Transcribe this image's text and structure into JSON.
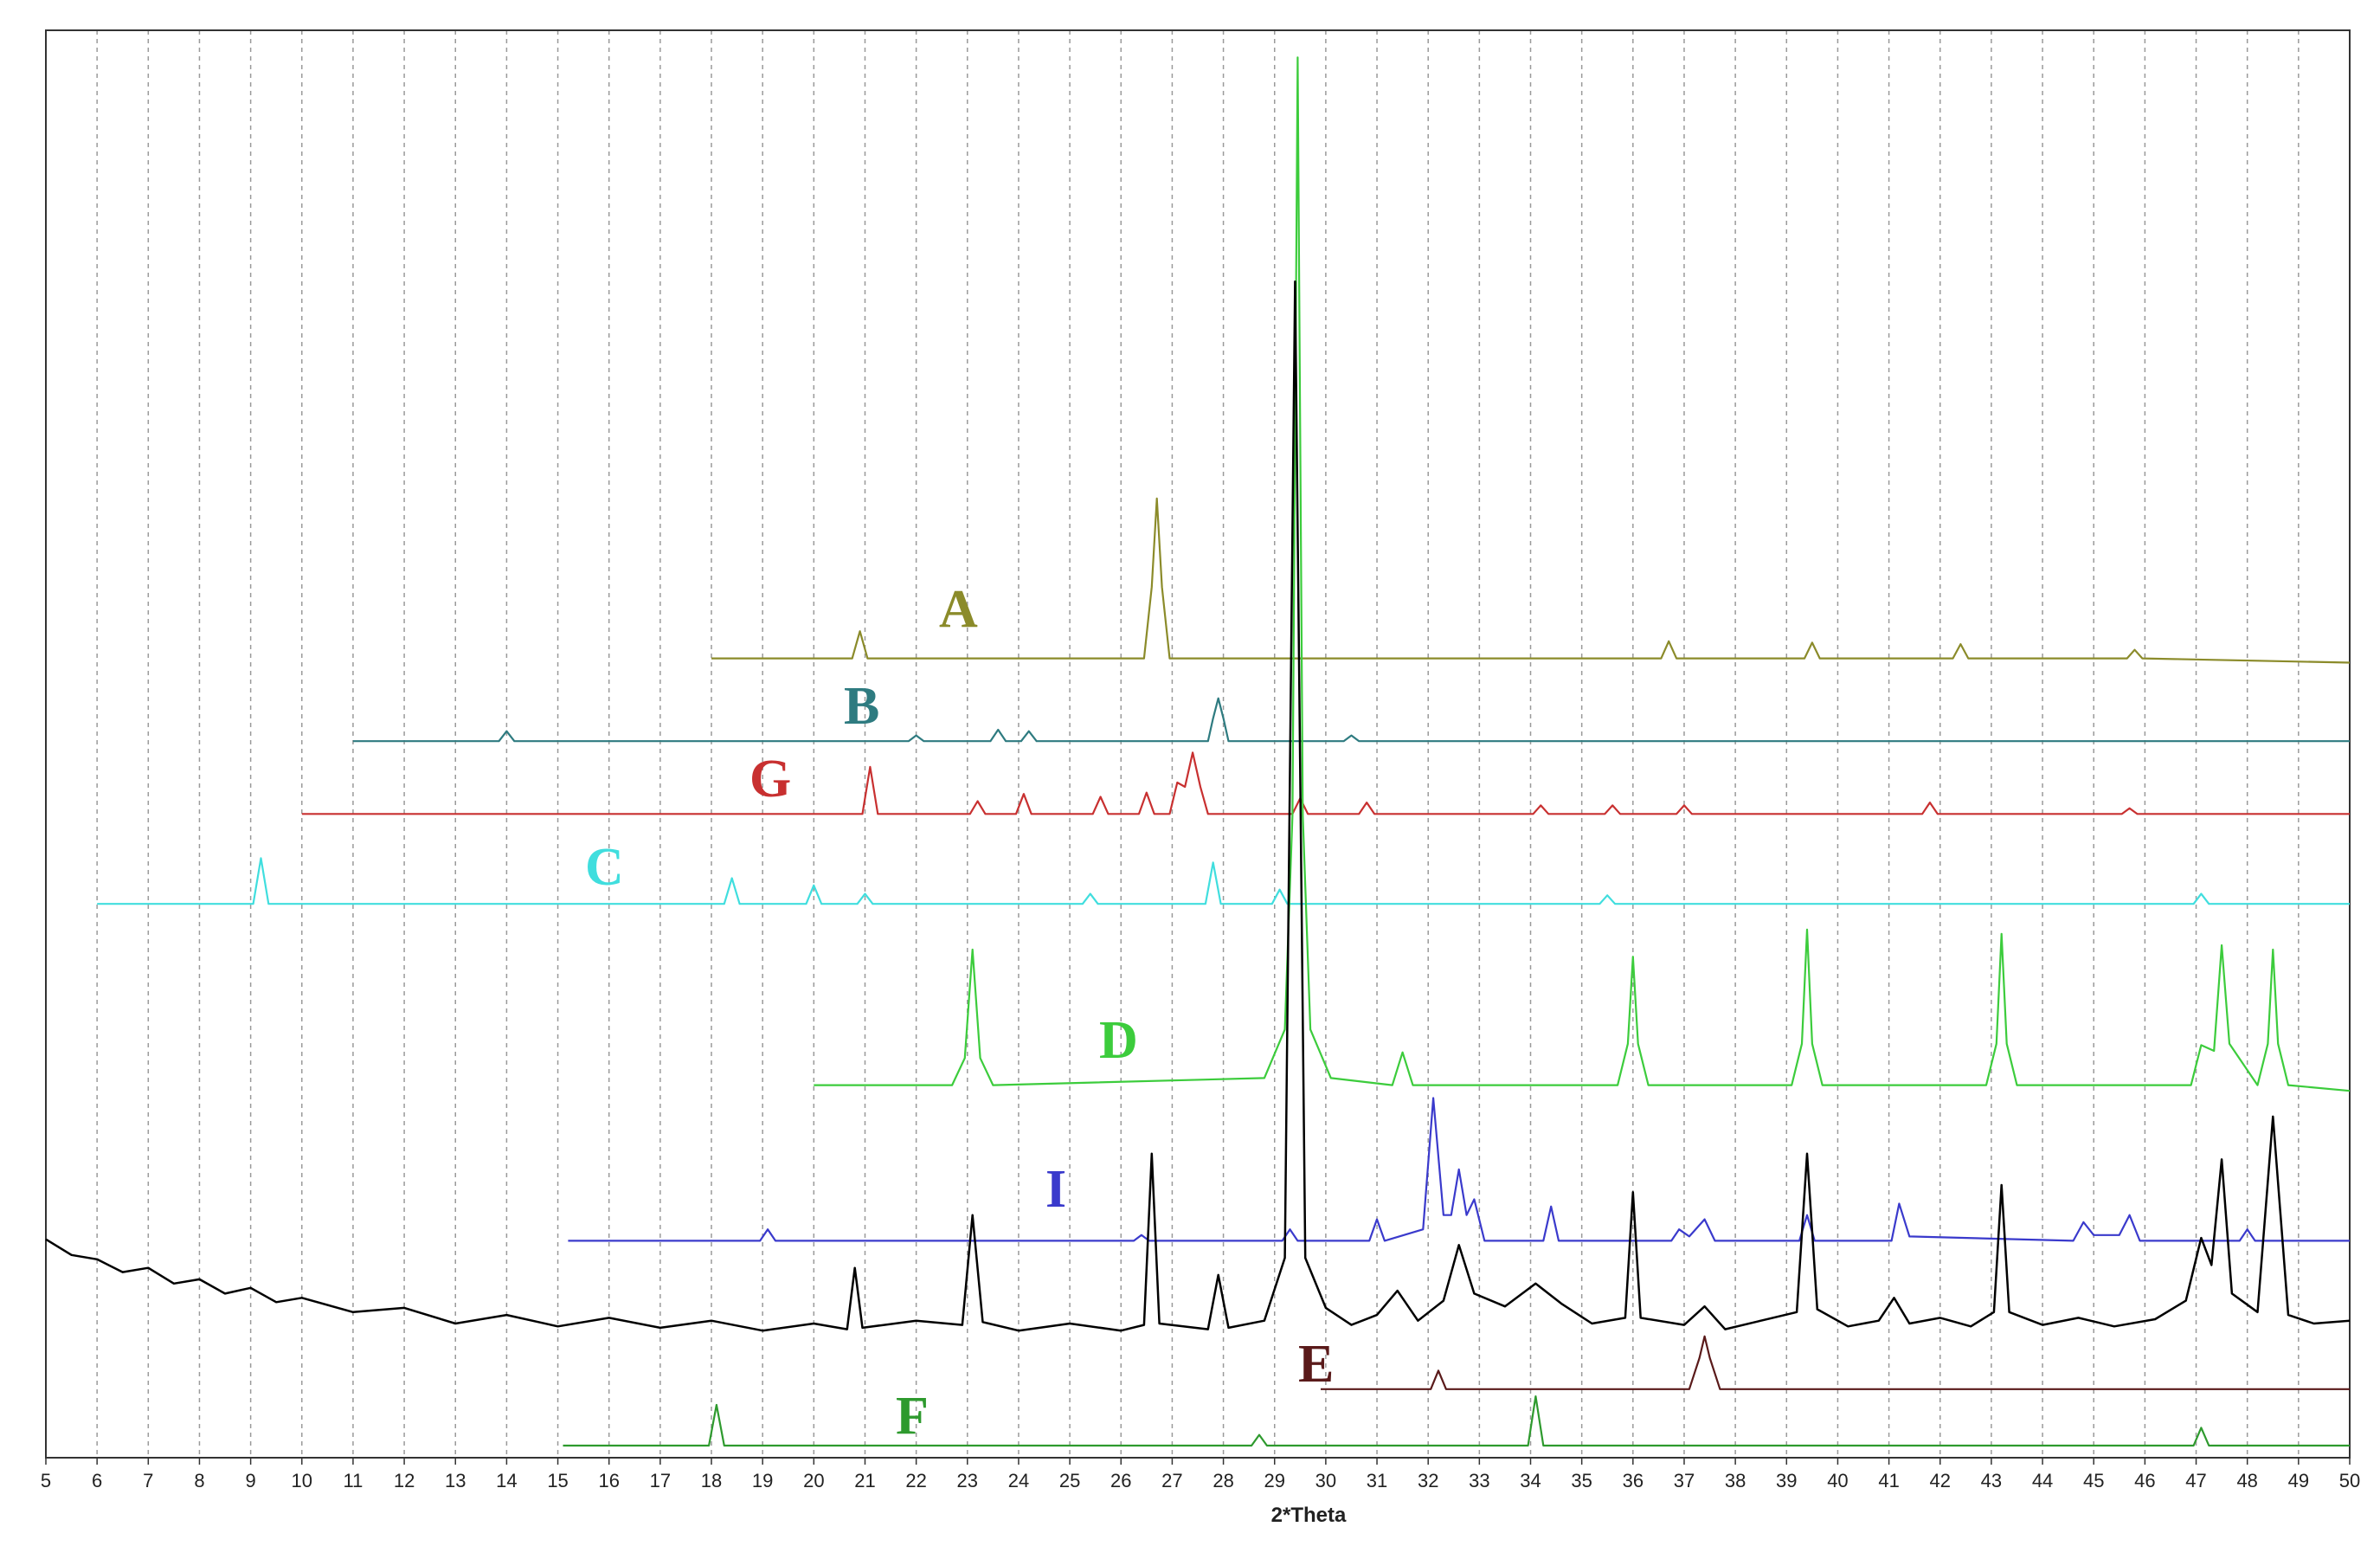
{
  "chart_data": {
    "type": "line",
    "x_label": "2*Theta",
    "xlim": [
      5,
      50
    ],
    "ylim": [
      0,
      100
    ],
    "xticks": [
      5,
      6,
      7,
      8,
      9,
      10,
      11,
      12,
      13,
      14,
      15,
      16,
      17,
      18,
      19,
      20,
      21,
      22,
      23,
      24,
      25,
      26,
      27,
      28,
      29,
      30,
      31,
      32,
      33,
      34,
      35,
      36,
      37,
      38,
      39,
      40,
      41,
      42,
      43,
      44,
      45,
      46,
      47,
      48,
      49,
      50
    ],
    "grid": true,
    "series": [
      {
        "name": "A",
        "color": "#8b8b2a",
        "x": [
          18,
          20.75,
          20.9,
          21.05,
          26.45,
          26.6,
          26.7,
          26.8,
          26.95,
          36.55,
          36.7,
          36.85,
          39.35,
          39.5,
          39.65,
          42.25,
          42.4,
          42.55,
          45.65,
          45.8,
          45.95,
          50
        ],
        "values": [
          56.0,
          56.0,
          57.9,
          56.0,
          56.0,
          61,
          67.2,
          61,
          56.0,
          56.0,
          57.2,
          56.0,
          56.0,
          57.1,
          56.0,
          56.0,
          57.0,
          56.0,
          56.0,
          56.6,
          56.0,
          55.7
        ]
      },
      {
        "name": "B",
        "color": "#2e7b80",
        "x": [
          11,
          13.85,
          14,
          14.15,
          21.85,
          22,
          22.15,
          23.45,
          23.6,
          23.75,
          24.05,
          24.2,
          24.35,
          27.7,
          27.8,
          27.9,
          28,
          28.1,
          30.35,
          30.5,
          30.65,
          50
        ],
        "values": [
          50.2,
          50.2,
          50.9,
          50.2,
          50.2,
          50.6,
          50.2,
          50.2,
          51.0,
          50.2,
          50.2,
          50.9,
          50.2,
          50.2,
          51.8,
          53.2,
          51.8,
          50.2,
          50.2,
          50.6,
          50.2,
          50.2
        ]
      },
      {
        "name": "G",
        "color": "#c83030",
        "x": [
          10,
          20.95,
          21.1,
          21.25,
          23.05,
          23.2,
          23.35,
          23.95,
          24.1,
          24.25,
          25.45,
          25.6,
          25.75,
          26.35,
          26.5,
          26.65,
          26.95,
          27.1,
          27.25,
          27.4,
          27.55,
          27.7,
          29.35,
          29.5,
          29.65,
          30.65,
          30.8,
          30.95,
          34.05,
          34.2,
          34.35,
          35.45,
          35.6,
          35.75,
          36.85,
          37,
          37.15,
          41.65,
          41.8,
          41.95,
          45.55,
          45.7,
          45.85,
          50
        ],
        "values": [
          45.1,
          45.1,
          48.4,
          45.1,
          45.1,
          46.0,
          45.1,
          45.1,
          46.5,
          45.1,
          45.1,
          46.3,
          45.1,
          45.1,
          46.6,
          45.1,
          45.1,
          47.3,
          47.0,
          49.4,
          47.0,
          45.1,
          45.1,
          46.2,
          45.1,
          45.1,
          45.9,
          45.1,
          45.1,
          45.7,
          45.1,
          45.1,
          45.7,
          45.1,
          45.1,
          45.7,
          45.1,
          45.1,
          45.9,
          45.1,
          45.1,
          45.5,
          45.1,
          45.1
        ]
      },
      {
        "name": "C",
        "color": "#40dede",
        "x": [
          6,
          9.05,
          9.2,
          9.35,
          18.25,
          18.4,
          18.55,
          19.85,
          20,
          20.15,
          20.85,
          21,
          21.15,
          25.25,
          25.4,
          25.55,
          27.65,
          27.8,
          27.95,
          28.95,
          29.1,
          29.25,
          35.35,
          35.5,
          35.65,
          46.95,
          47.1,
          47.25,
          50
        ],
        "values": [
          38.8,
          38.8,
          42.0,
          38.8,
          38.8,
          40.6,
          38.8,
          38.8,
          40.1,
          38.8,
          38.8,
          39.5,
          38.8,
          38.8,
          39.5,
          38.8,
          38.8,
          41.7,
          38.8,
          38.8,
          39.8,
          38.8,
          38.8,
          39.4,
          38.8,
          38.8,
          39.5,
          38.8,
          38.8
        ]
      },
      {
        "name": "D",
        "color": "#3ccc3c",
        "x": [
          20,
          22.7,
          22.95,
          23.1,
          23.25,
          23.5,
          28.8,
          29.2,
          29.35,
          29.45,
          29.55,
          29.7,
          30.1,
          31.3,
          31.5,
          31.7,
          35.7,
          35.9,
          36,
          36.1,
          36.3,
          39.1,
          39.3,
          39.4,
          39.5,
          39.7,
          42.9,
          43.1,
          43.2,
          43.3,
          43.5,
          46.9,
          47.1,
          47.35,
          47.5,
          47.65,
          48.2,
          48.4,
          48.5,
          48.6,
          48.8,
          50
        ],
        "values": [
          26.1,
          26.1,
          28,
          35.6,
          28,
          26.1,
          26.6,
          30,
          45,
          98.1,
          45,
          30,
          26.6,
          26.1,
          28.4,
          26.1,
          26.1,
          29,
          35.1,
          29,
          26.1,
          26.1,
          29,
          37.0,
          29,
          26.1,
          26.1,
          29,
          36.7,
          29,
          26.1,
          26.1,
          28.9,
          28.5,
          35.9,
          29,
          26.1,
          29,
          35.6,
          29,
          26.1,
          25.7
        ]
      },
      {
        "name": "I",
        "color": "#3a3acc",
        "x": [
          15.2,
          18.95,
          19.1,
          19.25,
          26.25,
          26.4,
          26.55,
          29.15,
          29.3,
          29.45,
          30.85,
          31,
          31.15,
          31.9,
          32.1,
          32.3,
          32.45,
          32.6,
          32.75,
          32.9,
          33.1,
          34.25,
          34.4,
          34.55,
          36.75,
          36.9,
          37.1,
          37.4,
          37.6,
          39.25,
          39.4,
          39.55,
          41.05,
          41.2,
          41.4,
          44.6,
          44.8,
          45,
          45.5,
          45.7,
          45.9,
          47.85,
          48,
          48.15,
          50
        ],
        "values": [
          15.2,
          15.2,
          16.0,
          15.2,
          15.2,
          15.6,
          15.2,
          15.2,
          16.0,
          15.2,
          15.2,
          16.7,
          15.2,
          16,
          25.2,
          17,
          17,
          20.2,
          17,
          18.1,
          15.2,
          15.2,
          17.6,
          15.2,
          15.2,
          16.0,
          15.5,
          16.7,
          15.2,
          15.2,
          17.0,
          15.2,
          15.2,
          17.8,
          15.5,
          15.2,
          16.5,
          15.6,
          15.6,
          17.0,
          15.2,
          15.2,
          16.0,
          15.2,
          15.2
        ]
      },
      {
        "color": "#000000",
        "x": [
          5,
          5.5,
          6,
          6.5,
          7,
          7.5,
          8,
          8.5,
          9,
          9.5,
          10,
          11,
          12,
          13,
          14,
          15,
          16,
          17,
          18,
          19,
          20,
          20.65,
          20.8,
          20.95,
          22,
          22.9,
          23.1,
          23.3,
          24,
          25,
          26,
          26.45,
          26.6,
          26.75,
          27.7,
          27.9,
          28.1,
          28.8,
          29.2,
          29.4,
          29.6,
          30,
          30.5,
          31,
          31.4,
          31.8,
          32.3,
          32.6,
          32.9,
          33.5,
          34.1,
          34.6,
          35.2,
          35.85,
          36,
          36.15,
          37,
          37.4,
          37.8,
          38.5,
          39.2,
          39.4,
          39.6,
          40.2,
          40.8,
          41.1,
          41.4,
          42,
          42.6,
          43.05,
          43.2,
          43.35,
          44,
          44.7,
          45.4,
          46.2,
          46.8,
          47.1,
          47.3,
          47.5,
          47.7,
          48.2,
          48.5,
          48.8,
          49.3,
          50
        ],
        "values": [
          15.3,
          14.2,
          13.9,
          13.0,
          13.3,
          12.2,
          12.5,
          11.5,
          11.9,
          10.9,
          11.2,
          10.2,
          10.5,
          9.4,
          10.0,
          9.2,
          9.8,
          9.1,
          9.6,
          8.9,
          9.4,
          9.0,
          13.3,
          9.1,
          9.6,
          9.3,
          17.0,
          9.5,
          8.9,
          9.4,
          8.9,
          9.3,
          21.3,
          9.4,
          9.0,
          12.8,
          9.1,
          9.6,
          14,
          82.4,
          14,
          10.5,
          9.3,
          10.0,
          11.7,
          9.6,
          11.0,
          14.9,
          11.5,
          10.6,
          12.2,
          10.8,
          9.4,
          9.8,
          18.6,
          9.8,
          9.3,
          10.6,
          9.0,
          9.6,
          10.2,
          21.3,
          10.4,
          9.2,
          9.6,
          11.2,
          9.4,
          9.8,
          9.2,
          10.2,
          19.1,
          10.2,
          9.3,
          9.8,
          9.2,
          9.7,
          11.0,
          15.4,
          13.5,
          20.9,
          11.5,
          10.2,
          23.9,
          10.0,
          9.4,
          9.6
        ]
      },
      {
        "name": "E",
        "color": "#5a1a1a",
        "x": [
          29.9,
          32.05,
          32.2,
          32.35,
          37.1,
          37.3,
          37.4,
          37.5,
          37.7,
          50
        ],
        "values": [
          4.8,
          4.8,
          6.1,
          4.8,
          4.8,
          7,
          8.5,
          7,
          4.8,
          4.8
        ]
      },
      {
        "name": "F",
        "color": "#2e9a2e",
        "x": [
          15.1,
          17.95,
          18.1,
          18.25,
          28.55,
          28.7,
          28.85,
          33.95,
          34.1,
          34.25,
          46.95,
          47.1,
          47.25,
          50
        ],
        "values": [
          0.85,
          0.85,
          3.7,
          0.85,
          0.85,
          1.6,
          0.85,
          0.85,
          4.3,
          0.85,
          0.85,
          2.1,
          0.85,
          0.85
        ]
      }
    ]
  }
}
